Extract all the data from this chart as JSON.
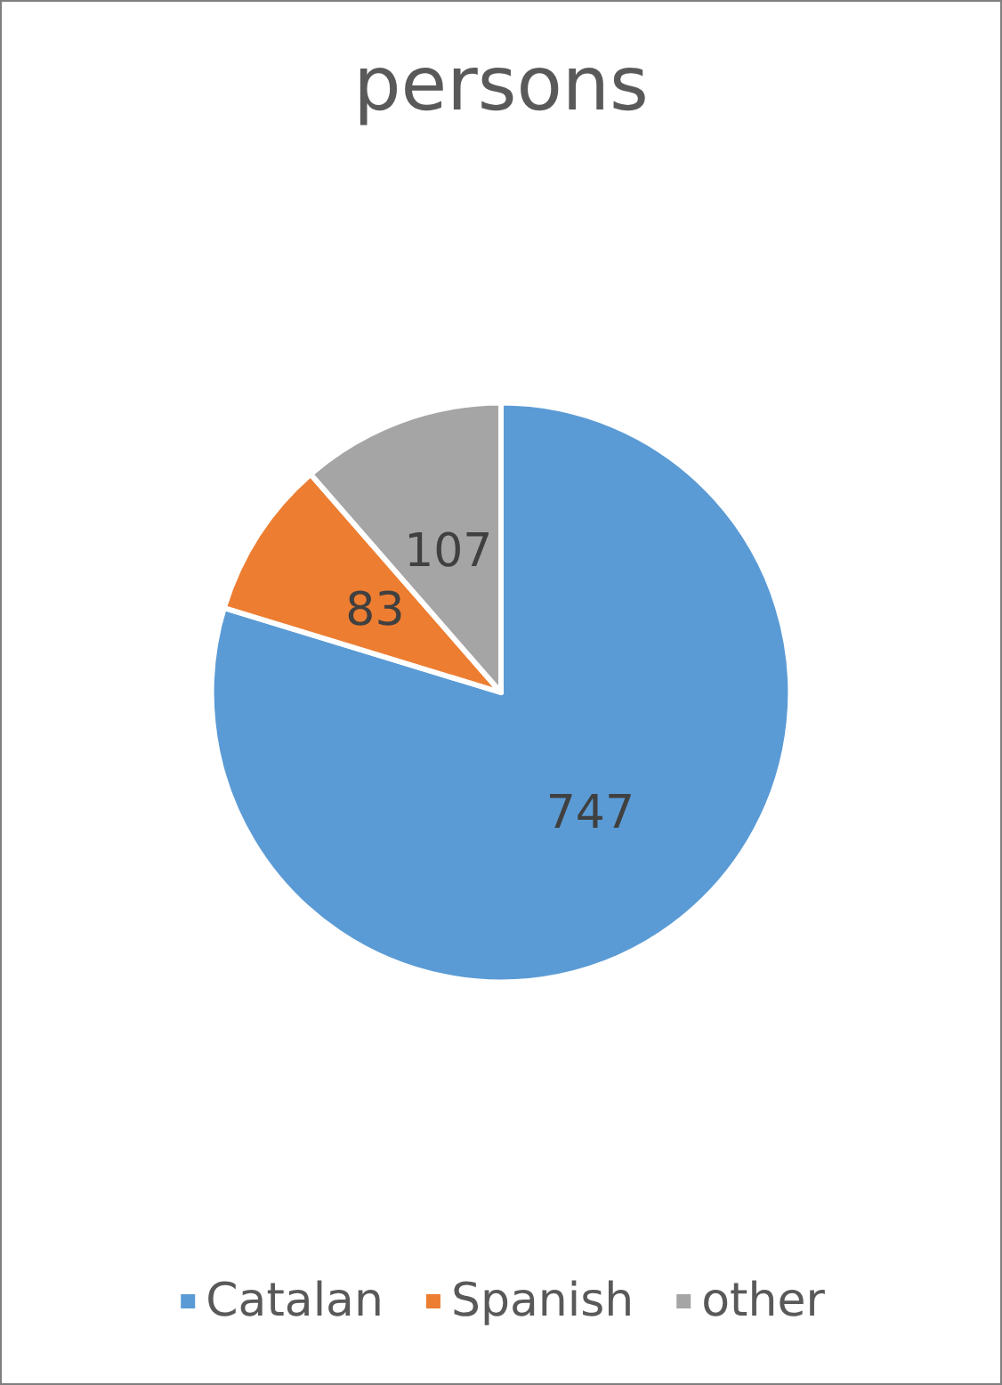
{
  "chart_data": {
    "type": "pie",
    "title": "persons",
    "categories": [
      "Catalan",
      "Spanish",
      "other"
    ],
    "values": [
      747,
      83,
      107
    ],
    "colors": [
      "#5b9bd5",
      "#ed7d31",
      "#a5a5a5"
    ],
    "data_labels": true,
    "legend": "bottom"
  }
}
